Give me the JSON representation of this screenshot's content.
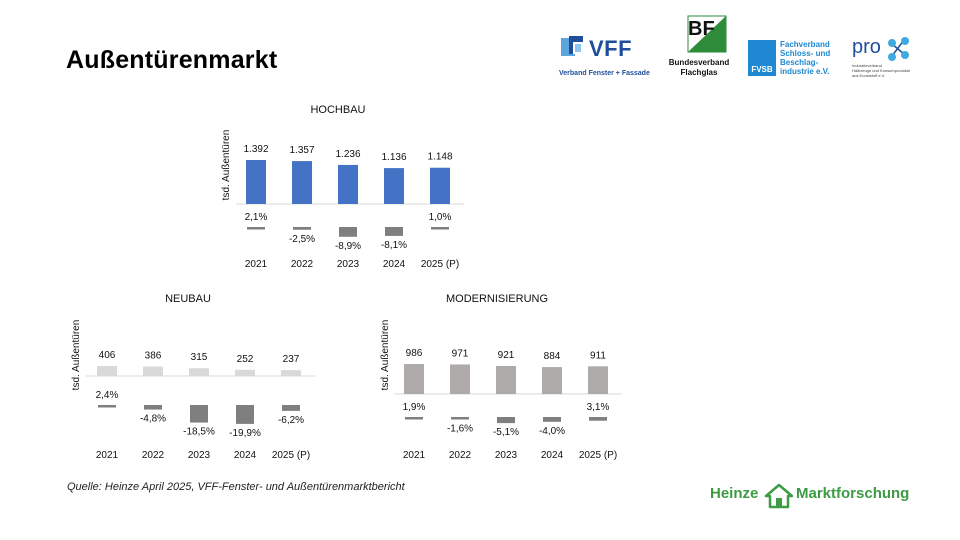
{
  "slide": {
    "title": "Außentürenmarkt",
    "source": "Quelle: Heinze April 2025, VFF-Fenster- und Außentürenmarktbericht"
  },
  "logos": {
    "vff": {
      "main": "VFF",
      "sub": "Verband Fenster + Fassade"
    },
    "bf": {
      "main": "BF",
      "line1": "Bundesverband",
      "line2": "Flachglas"
    },
    "fvsb": {
      "badge": "FVSB",
      "line1": "Fachverband",
      "line2": "Schloss- und",
      "line3": "Beschlag-",
      "line4": "industrie e.V."
    },
    "prok": {
      "main": "pro",
      "sub1": "Industrieverband",
      "sub2": "Halbzeuge und Konsumprodukte",
      "sub3": "aus Kunststoff e.V."
    },
    "heinze": {
      "left": "Heinze",
      "right": "Marktforschung"
    }
  },
  "chart_data": [
    {
      "type": "bar",
      "title": "HOCHBAU",
      "ylabel": "tsd. Außentüren",
      "categories": [
        "2021",
        "2022",
        "2023",
        "2024",
        "2025 (P)"
      ],
      "values": [
        1392,
        1357,
        1236,
        1136,
        1148
      ],
      "value_labels": [
        "1.392",
        "1.357",
        "1.236",
        "1.136",
        "1.148"
      ],
      "change_pct": [
        2.1,
        -2.5,
        -8.9,
        -8.1,
        1.0
      ],
      "change_labels": [
        "2,1%",
        "-2,5%",
        "-8,9%",
        "-8,1%",
        "1,0%"
      ],
      "color": "#4472C4",
      "change_color": "#7F7F7F",
      "grid": false
    },
    {
      "type": "bar",
      "title": "NEUBAU",
      "ylabel": "tsd. Außentüren",
      "categories": [
        "2021",
        "2022",
        "2023",
        "2024",
        "2025 (P)"
      ],
      "values": [
        406,
        386,
        315,
        252,
        237
      ],
      "value_labels": [
        "406",
        "386",
        "315",
        "252",
        "237"
      ],
      "change_pct": [
        2.4,
        -4.8,
        -18.5,
        -19.9,
        -6.2
      ],
      "change_labels": [
        "2,4%",
        "-4,8%",
        "-18,5%",
        "-19,9%",
        "-6,2%"
      ],
      "color": "#D9D9D9",
      "change_color": "#7F7F7F",
      "grid": false
    },
    {
      "type": "bar",
      "title": "MODERNISIERUNG",
      "ylabel": "tsd. Außentüren",
      "categories": [
        "2021",
        "2022",
        "2023",
        "2024",
        "2025 (P)"
      ],
      "values": [
        986,
        971,
        921,
        884,
        911
      ],
      "value_labels": [
        "986",
        "971",
        "921",
        "884",
        "911"
      ],
      "change_pct": [
        1.9,
        -1.6,
        -5.1,
        -4.0,
        3.1
      ],
      "change_labels": [
        "1,9%",
        "-1,6%",
        "-5,1%",
        "-4,0%",
        "3,1%"
      ],
      "color": "#AEAAAA",
      "change_color": "#7F7F7F",
      "grid": false
    }
  ]
}
